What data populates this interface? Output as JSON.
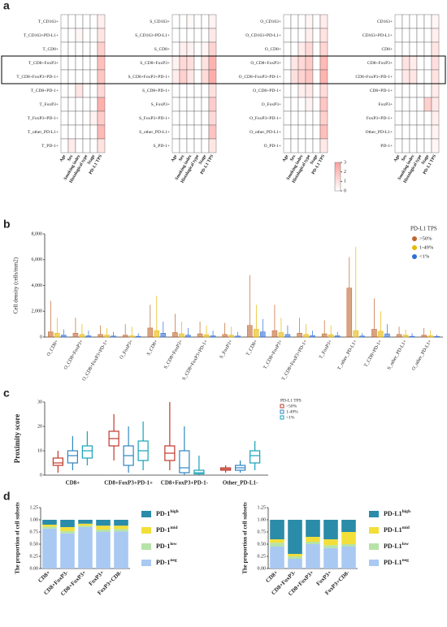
{
  "chart_data": [
    {
      "type": "heatmap",
      "panel_label": "a",
      "columns": [
        "Age",
        "Sex",
        "Smoking index",
        "Histological type",
        "Stage",
        "PD-L1 TPS"
      ],
      "colorbar_lim": [
        0,
        3
      ],
      "colorbar_ticks": [
        0,
        1,
        2,
        3
      ],
      "highlight_rows": [
        3,
        4
      ],
      "maps": [
        {
          "rows": [
            "T_CD163+",
            "T_CD163+PD-L1+",
            "T_CD8+",
            "T_CD8+FoxP3+",
            "T_CD8+FoxP3+PD-1+",
            "T_CD8+PD-1+",
            "T_FoxP3+",
            "T_FoxP3+PD-1+",
            "T_other_PD-L1+",
            "T_PD-1+"
          ],
          "values": [
            [
              0,
              0,
              0,
              0,
              0,
              0.5
            ],
            [
              0,
              0,
              0.3,
              0,
              0,
              0.8
            ],
            [
              0,
              0,
              0,
              0,
              0,
              1.5
            ],
            [
              0,
              0,
              0,
              0,
              0,
              2.0
            ],
            [
              0,
              0,
              0,
              0,
              0,
              1.8
            ],
            [
              0,
              0,
              0.8,
              0,
              0,
              1.2
            ],
            [
              0,
              0,
              0,
              0,
              0,
              2.5
            ],
            [
              0,
              0,
              0,
              0,
              0.4,
              1.6
            ],
            [
              0,
              0,
              0,
              0,
              0,
              2.2
            ],
            [
              0,
              0.6,
              0,
              0,
              0,
              0.9
            ]
          ]
        },
        {
          "rows": [
            "S_CD163+",
            "S_CD163+PD-L1+",
            "S_CD8+",
            "S_CD8+FoxP3+",
            "S_CD8+FoxP3+PD-1+",
            "S_CD8+PD-1+",
            "S_FoxP3+",
            "S_FoxP3+PD-1+",
            "S_other_PD-L1+",
            "S_PD-1+"
          ],
          "values": [
            [
              0,
              0,
              0.2,
              0,
              0,
              0.4
            ],
            [
              0,
              0,
              0,
              0,
              0,
              0.7
            ],
            [
              0,
              0.5,
              0.4,
              0,
              0.3,
              1.4
            ],
            [
              0.4,
              1.2,
              1.0,
              0,
              0.9,
              2.4
            ],
            [
              0.6,
              1.5,
              0.8,
              0,
              1.1,
              2.6
            ],
            [
              0,
              0,
              0,
              0,
              0,
              1.0
            ],
            [
              0,
              0,
              0,
              0,
              0,
              1.6
            ],
            [
              0,
              0,
              0,
              0,
              0,
              1.2
            ],
            [
              0,
              0,
              0,
              0,
              0,
              1.9
            ],
            [
              0,
              0,
              0,
              0,
              0,
              0.8
            ]
          ]
        },
        {
          "rows": [
            "O_CD163+",
            "O_CD163+PD-L1+",
            "O_CD8+",
            "O_CD8+FoxP3+",
            "O_CD8+FoxP3+PD-1+",
            "O_CD8+PD-1+",
            "O_FoxP3+",
            "O_FoxP3+PD-1+",
            "O_other_PD-L1+",
            "O_PD-1+"
          ],
          "values": [
            [
              0,
              0,
              0,
              0.3,
              0,
              0.6
            ],
            [
              0,
              0,
              0,
              0.5,
              0,
              0.9
            ],
            [
              0,
              0,
              0.6,
              1.2,
              0,
              1.3
            ],
            [
              0,
              0.8,
              1.2,
              1.6,
              0,
              2.2
            ],
            [
              0,
              1.0,
              1.4,
              1.8,
              0,
              2.4
            ],
            [
              0,
              0,
              0.5,
              0.7,
              0,
              1.1
            ],
            [
              0,
              0,
              0,
              0.4,
              0,
              1.8
            ],
            [
              0,
              0,
              0,
              0,
              0,
              1.5
            ],
            [
              0,
              0,
              0,
              0,
              0,
              2.0
            ],
            [
              0,
              0,
              0,
              0,
              0,
              0.7
            ]
          ]
        },
        {
          "rows": [
            "CD163+",
            "CD163+PD-L1+",
            "CD8+",
            "CD8+FoxP3+",
            "CD8+FoxP3+PD-1+",
            "CD8+PD-1+",
            "FoxP3+",
            "FoxP3+PD-1+",
            "Other_PD-L1+",
            "PD-1+"
          ],
          "values": [
            [
              0,
              0,
              0,
              0,
              0,
              0.3
            ],
            [
              0,
              0,
              0,
              0,
              0,
              0.5
            ],
            [
              0,
              0,
              0,
              0,
              0,
              0.8
            ],
            [
              0,
              0.9,
              0.6,
              0,
              0,
              1.0
            ],
            [
              0,
              0.7,
              0.8,
              0,
              0,
              0.9
            ],
            [
              0,
              0,
              0,
              0,
              0,
              0.6
            ],
            [
              0,
              0,
              0,
              0,
              1.5,
              0.7
            ],
            [
              0,
              0,
              0,
              0,
              0,
              0.5
            ],
            [
              0,
              0,
              0,
              0,
              0,
              0.4
            ],
            [
              0,
              0,
              0,
              0,
              0,
              0.3
            ]
          ]
        }
      ]
    },
    {
      "type": "density-box",
      "panel_label": "b",
      "y_label": "Cell density (cells/mm2)",
      "legend_title": "PD-L1 TPS",
      "ylim": [
        0,
        8000
      ],
      "yticks": [
        0,
        {
          "value": 2000,
          "label": "2,000"
        },
        {
          "value": 4000,
          "label": "4,000"
        },
        {
          "value": 6000,
          "label": "6,000"
        },
        {
          "value": 8000,
          "label": "8,000"
        }
      ],
      "categories": [
        "O_CD8+",
        "O_CD8+FoxP3+",
        "O_CD8+FoxP3+PD-1+",
        "O_FoxP3+",
        "S_CD8+",
        "S_CD8+FoxP3+",
        "S_CD8+FoxP3+PD-1+",
        "S_FoxP3+",
        "T_CD8+",
        "T_CD8+FoxP3+",
        "T_CD8+FoxP3+PD-1+",
        "T_FoxP3+",
        "T_other_PD-L1+",
        "T_CD8+PD-1+",
        "S_other_PD-L1+",
        "O_other_PD-L1+"
      ],
      "series": [
        {
          "name": ">50%",
          "color": "#c0652d",
          "values": [
            400,
            300,
            200,
            150,
            700,
            350,
            250,
            200,
            900,
            500,
            300,
            250,
            3800,
            600,
            200,
            150
          ],
          "max": [
            2800,
            1500,
            900,
            1000,
            2500,
            1800,
            1200,
            1100,
            4800,
            2500,
            1500,
            1300,
            6200,
            3000,
            800,
            700
          ]
        },
        {
          "name": "1-49%",
          "color": "#e6b800",
          "values": [
            300,
            200,
            150,
            100,
            500,
            250,
            180,
            150,
            600,
            350,
            200,
            180,
            500,
            450,
            150,
            100
          ],
          "max": [
            1500,
            1000,
            700,
            800,
            3200,
            1200,
            900,
            800,
            2500,
            1500,
            1000,
            900,
            7000,
            2000,
            600,
            500
          ]
        },
        {
          "name": "<1%",
          "color": "#2e6fd8",
          "values": [
            150,
            100,
            80,
            60,
            300,
            150,
            100,
            80,
            400,
            200,
            120,
            100,
            80,
            250,
            60,
            50
          ],
          "max": [
            600,
            500,
            400,
            300,
            1200,
            700,
            500,
            400,
            1400,
            900,
            500,
            400,
            300,
            1000,
            300,
            200
          ]
        }
      ]
    },
    {
      "type": "box",
      "panel_label": "c",
      "y_label": "Proximity score",
      "legend_title": "PD-L1 TPS",
      "ylim": [
        0,
        30
      ],
      "yticks": [
        0,
        10,
        20,
        30
      ],
      "categories": [
        "CD8+",
        "CD8+FoxP3+PD-1+",
        "CD8+FoxP3+PD-1-",
        "Other_PD-L1-"
      ],
      "series": [
        {
          "name": ">50%",
          "color": "#c0392b",
          "q1": [
            4,
            12,
            6,
            2
          ],
          "median": [
            5,
            15,
            9,
            2.5
          ],
          "q3": [
            7,
            18,
            12,
            3
          ],
          "min": [
            1,
            6,
            2,
            1
          ],
          "max": [
            10,
            25,
            30,
            4
          ]
        },
        {
          "name": "1-49%",
          "color": "#2e86c1",
          "q1": [
            5,
            4,
            1,
            2
          ],
          "median": [
            8,
            8,
            3,
            3
          ],
          "q3": [
            10,
            12,
            10,
            4
          ],
          "min": [
            2,
            1,
            0,
            1
          ],
          "max": [
            16,
            20,
            20,
            6
          ]
        },
        {
          "name": "<1%",
          "color": "#17a2b8",
          "q1": [
            7,
            6,
            0.5,
            5
          ],
          "median": [
            10,
            10,
            1,
            8
          ],
          "q3": [
            12,
            14,
            2,
            10
          ],
          "min": [
            4,
            2,
            0,
            2
          ],
          "max": [
            18,
            22,
            8,
            14
          ]
        }
      ]
    },
    {
      "type": "stacked",
      "panel_label": "d",
      "y_label": "The proportion of cell subsets",
      "ylim": [
        0,
        1.25
      ],
      "yticks": [
        {
          "value": 0,
          "label": "0.00"
        },
        {
          "value": 0.25,
          "label": "0.25"
        },
        {
          "value": 0.5,
          "label": "0.50"
        },
        {
          "value": 0.75,
          "label": "0.75"
        },
        {
          "value": 1,
          "label": "1.00"
        },
        {
          "value": 1.25,
          "label": "1.25"
        }
      ],
      "categories": [
        "CD8+",
        "CD8+FoxP3-",
        "CD8+FoxP3+",
        "FoxP3+",
        "FoxP3+CD8-"
      ],
      "series": [
        {
          "name": "PD-1",
          "sup": "neg",
          "color": "#a9c9f2",
          "values": [
            0.82,
            0.72,
            0.85,
            0.75,
            0.76
          ]
        },
        {
          "name": "PD-1",
          "sup": "low",
          "color": "#b6e3a8",
          "values": [
            0.04,
            0.05,
            0.03,
            0.05,
            0.05
          ]
        },
        {
          "name": "PD-1",
          "sup": "mid",
          "color": "#f2df3a",
          "values": [
            0.04,
            0.08,
            0.04,
            0.08,
            0.07
          ]
        },
        {
          "name": "PD-1",
          "sup": "high",
          "color": "#2a8ca8",
          "values": [
            0.1,
            0.15,
            0.08,
            0.12,
            0.12
          ]
        }
      ]
    },
    {
      "type": "stacked",
      "y_label": "The proportion of cell subsets",
      "ylim": [
        0,
        1.25
      ],
      "yticks": [
        {
          "value": 0,
          "label": "0.00"
        },
        {
          "value": 0.25,
          "label": "0.25"
        },
        {
          "value": 0.5,
          "label": "0.50"
        },
        {
          "value": 0.75,
          "label": "0.75"
        },
        {
          "value": 1,
          "label": "1.00"
        },
        {
          "value": 1.25,
          "label": "1.25"
        }
      ],
      "categories": [
        "CD8+",
        "CD8+FoxP3-",
        "CD8+FoxP3+",
        "FoxP3+",
        "FoxP3+CD8-"
      ],
      "series": [
        {
          "name": "PD-L1",
          "sup": "neg",
          "color": "#a9c9f2",
          "values": [
            0.45,
            0.2,
            0.5,
            0.42,
            0.45
          ]
        },
        {
          "name": "PD-L1",
          "sup": "low",
          "color": "#b6e3a8",
          "values": [
            0.08,
            0.05,
            0.05,
            0.06,
            0.05
          ]
        },
        {
          "name": "PD-L1",
          "sup": "mid",
          "color": "#f2df3a",
          "values": [
            0.07,
            0.05,
            0.1,
            0.12,
            0.25
          ]
        },
        {
          "name": "PD-L1",
          "sup": "high",
          "color": "#2a8ca8",
          "values": [
            0.4,
            0.7,
            0.35,
            0.4,
            0.25
          ]
        }
      ]
    }
  ]
}
